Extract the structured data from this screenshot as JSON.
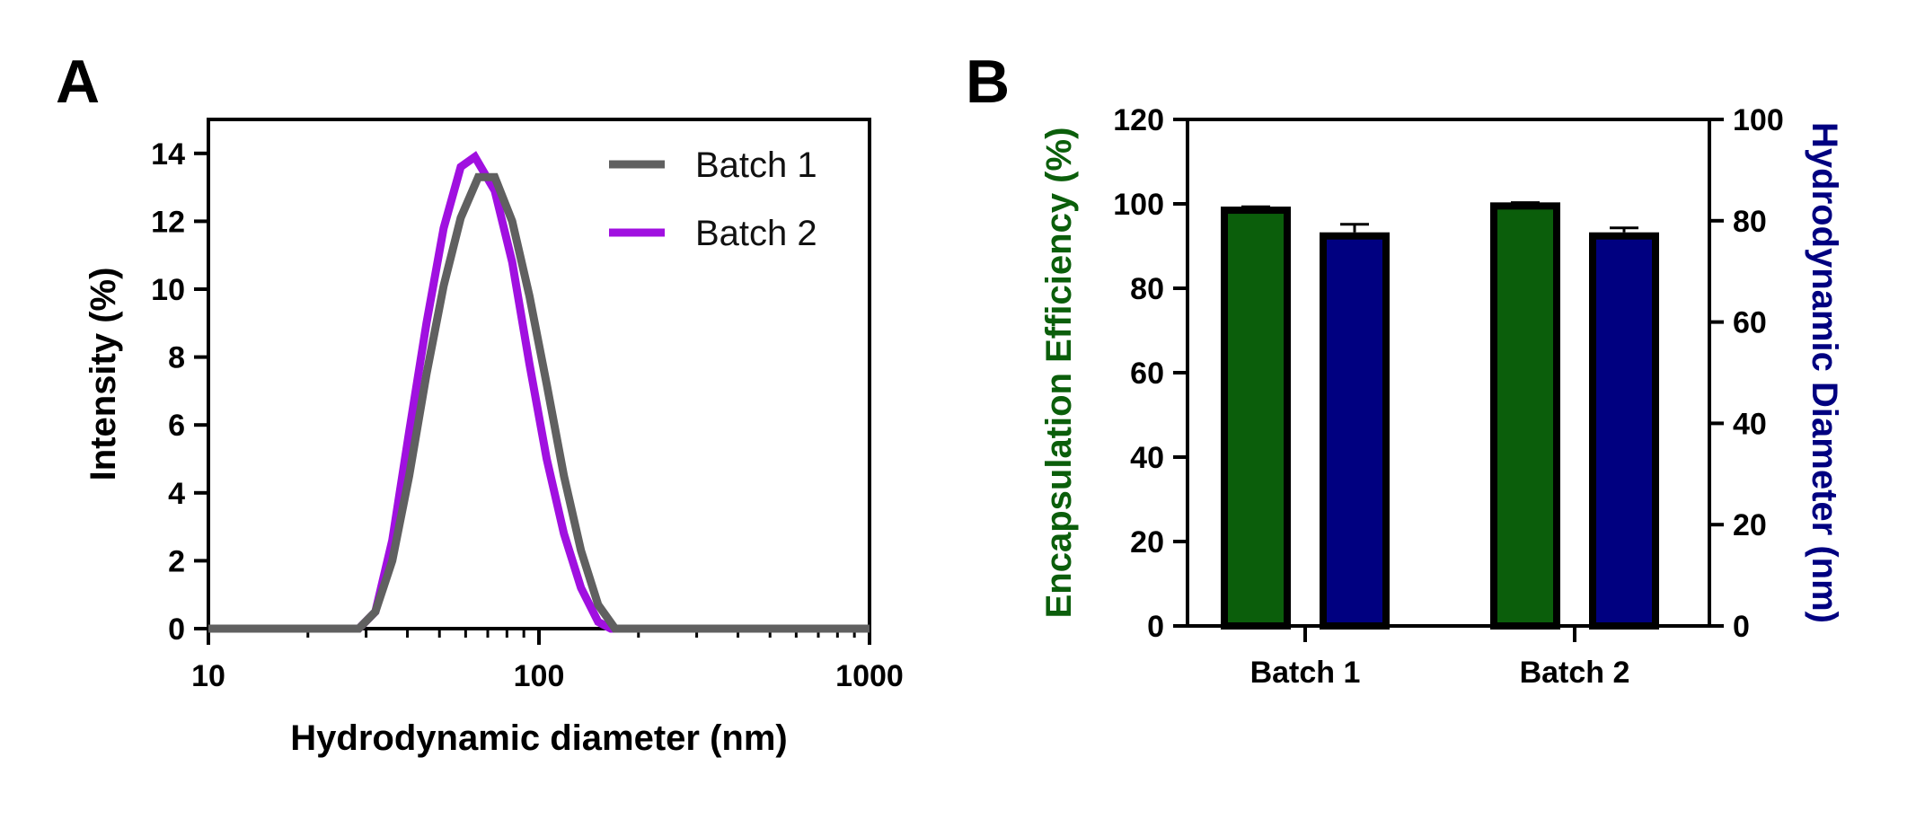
{
  "chart_data": [
    {
      "panel": "A",
      "type": "line",
      "xscale": "log",
      "xlabel": "Hydrodynamic diameter  (nm)",
      "ylabel": "Intensity (%)",
      "xlim": [
        10,
        1000
      ],
      "ylim": [
        0,
        15
      ],
      "xticks": [
        10,
        100,
        1000
      ],
      "xtick_labels": [
        "10",
        "100",
        "1000"
      ],
      "yticks": [
        0,
        2,
        4,
        6,
        8,
        10,
        12,
        14
      ],
      "ytick_labels": [
        "0",
        "2",
        "4",
        "6",
        "8",
        "10",
        "12",
        "14"
      ],
      "legend_position": "top-right",
      "series": [
        {
          "name": "Batch 1",
          "color": "#606060",
          "points": [
            [
              10,
              0
            ],
            [
              28.5,
              0
            ],
            [
              32,
              0.5
            ],
            [
              36,
              2.0
            ],
            [
              40.5,
              4.5
            ],
            [
              45.7,
              7.5
            ],
            [
              51.5,
              10.1
            ],
            [
              58,
              12.1
            ],
            [
              65.5,
              13.3
            ],
            [
              73.5,
              13.3
            ],
            [
              83,
              12.0
            ],
            [
              93.6,
              9.8
            ],
            [
              105.5,
              7.2
            ],
            [
              119,
              4.5
            ],
            [
              134,
              2.3
            ],
            [
              151,
              0.7
            ],
            [
              170,
              0
            ],
            [
              1000,
              0
            ]
          ]
        },
        {
          "name": "Batch 2",
          "color": "#A010E0",
          "points": [
            [
              10,
              0
            ],
            [
              28.5,
              0
            ],
            [
              32,
              0.5
            ],
            [
              36,
              2.6
            ],
            [
              40.5,
              5.8
            ],
            [
              45.7,
              9.0
            ],
            [
              51.5,
              11.8
            ],
            [
              58,
              13.6
            ],
            [
              64,
              13.9
            ],
            [
              73.5,
              12.9
            ],
            [
              83,
              10.8
            ],
            [
              93.6,
              7.8
            ],
            [
              105.5,
              5.0
            ],
            [
              119,
              2.8
            ],
            [
              134,
              1.2
            ],
            [
              151,
              0.2
            ],
            [
              165,
              0
            ],
            [
              1000,
              0
            ]
          ]
        }
      ]
    },
    {
      "panel": "B",
      "type": "bar",
      "categories": [
        "Batch 1",
        "Batch 2"
      ],
      "ylabel_left": "Encapsulation Efficiency  (%)",
      "ylabel_right": "Hydrodynamic  Diameter (nm)",
      "ylim_left": [
        0,
        120
      ],
      "ylim_right": [
        0,
        100
      ],
      "yticks_left": [
        0,
        20,
        40,
        60,
        80,
        100,
        120
      ],
      "ytick_labels_left": [
        "0",
        "20",
        "40",
        "60",
        "80",
        "100",
        "120"
      ],
      "yticks_right": [
        0,
        20,
        40,
        60,
        80,
        100
      ],
      "ytick_labels_right": [
        "0",
        "20",
        "40",
        "60",
        "80",
        "100"
      ],
      "left_label_color": "#0B5E0B",
      "right_label_color": "#000080",
      "series": [
        {
          "name": "Encapsulation Efficiency (%)",
          "axis": "left",
          "color": "#0B5E0B",
          "values": [
            98.5,
            99.5
          ],
          "errors": [
            0.8,
            0.8
          ]
        },
        {
          "name": "Hydrodynamic Diameter (nm)",
          "axis": "right",
          "color": "#000080",
          "values": [
            77,
            77
          ],
          "errors": [
            2.3,
            1.6
          ]
        }
      ]
    }
  ],
  "panels": {
    "a_label": "A",
    "b_label": "B"
  }
}
